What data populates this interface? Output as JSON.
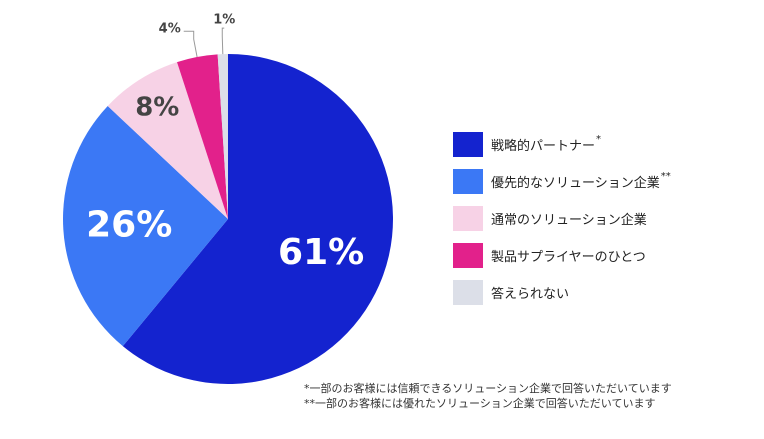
{
  "chart_data": {
    "type": "pie",
    "labels": [
      "戦略的パートナー",
      "優先的なソリューション企業",
      "通常のソリューション企業",
      "製品サプライヤーのひとつ",
      "答えられない"
    ],
    "label_marks": [
      "*",
      "**",
      "",
      "",
      ""
    ],
    "values": [
      61,
      26,
      8,
      4,
      1
    ],
    "value_labels": [
      "61%",
      "26%",
      "8%",
      "4%",
      "1%"
    ],
    "colors": [
      "#1423cf",
      "#3b78f5",
      "#f7d2e6",
      "#e2218b",
      "#dcdfe8"
    ],
    "legend_position": "right"
  },
  "footnotes": [
    "*一部のお客様には信頼できるソリューション企業で回答いただいています",
    "**一部のお客様には優れたソリューション企業で回答いただいています"
  ]
}
